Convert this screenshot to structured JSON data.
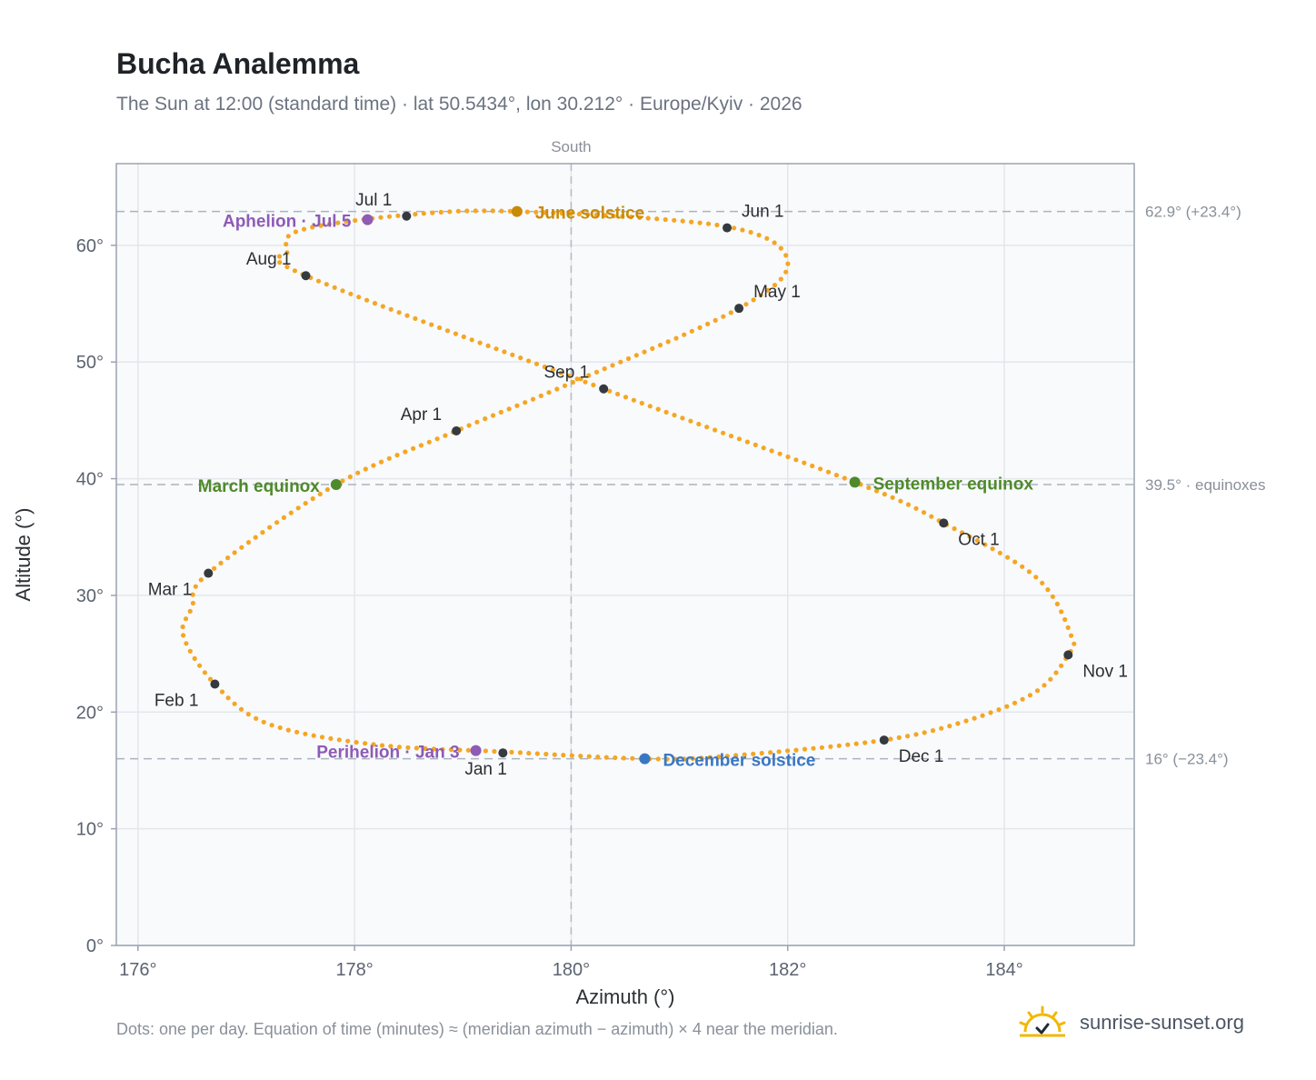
{
  "title": "Bucha Analemma",
  "subtitle": "The Sun at 12:00 (standard time) · lat 50.5434°, lon 30.212° · Europe/Kyiv · 2026",
  "footer": "Dots: one per day. Equation of time (minutes) ≈ (meridian azimuth − azimuth) × 4 near the meridian.",
  "brand": {
    "name": "sunrise-sunset.org",
    "icon": "sun-logo-icon",
    "color": "#f2b705"
  },
  "chart_data": {
    "type": "scatter",
    "xlabel": "Azimuth (°)",
    "ylabel": "Altitude (°)",
    "xlim": [
      175.8,
      185.2
    ],
    "ylim": [
      0,
      67
    ],
    "x_ticks": [
      176,
      178,
      180,
      182,
      184
    ],
    "x_tick_labels": [
      "176°",
      "178°",
      "180°",
      "182°",
      "184°"
    ],
    "y_ticks": [
      0,
      10,
      20,
      30,
      40,
      50,
      60
    ],
    "y_tick_labels": [
      "0°",
      "10°",
      "20°",
      "30°",
      "40°",
      "50°",
      "60°"
    ],
    "grid": true,
    "meridian": {
      "x": 180,
      "label": "South"
    },
    "reference_lines": [
      {
        "y": 62.9,
        "label": "62.9° (+23.4°)"
      },
      {
        "y": 39.5,
        "label": "39.5° · equinoxes"
      },
      {
        "y": 16.0,
        "label": "16° (−23.4°)"
      }
    ],
    "series": [
      {
        "path_keypoints": [
          [
            179.37,
            16.6
          ],
          [
            178.2,
            17.2
          ],
          [
            177.2,
            19.0
          ],
          [
            176.71,
            22.4
          ],
          [
            176.42,
            26.5
          ],
          [
            176.5,
            29.0
          ],
          [
            176.65,
            31.9
          ],
          [
            177.83,
            39.5
          ],
          [
            178.94,
            44.1
          ],
          [
            180.0,
            48.2
          ],
          [
            181.55,
            54.6
          ],
          [
            182.0,
            58.6
          ],
          [
            181.44,
            61.6
          ],
          [
            179.5,
            62.9
          ],
          [
            178.48,
            62.6
          ],
          [
            177.5,
            61.3
          ],
          [
            177.38,
            59.5
          ],
          [
            177.55,
            57.4
          ],
          [
            180.3,
            47.7
          ],
          [
            182.62,
            39.7
          ],
          [
            183.44,
            36.2
          ],
          [
            184.3,
            31.5
          ],
          [
            184.62,
            26.5
          ],
          [
            184.59,
            24.9
          ],
          [
            184.3,
            21.8
          ],
          [
            183.7,
            19.4
          ],
          [
            182.89,
            17.6
          ],
          [
            181.4,
            16.2
          ],
          [
            180.68,
            16.0
          ],
          [
            179.37,
            16.6
          ]
        ],
        "days": 365,
        "color": "#f5a623"
      }
    ],
    "month_markers": [
      {
        "label": "Jan 1",
        "x": 179.37,
        "y": 16.5,
        "anchor": "below"
      },
      {
        "label": "Feb 1",
        "x": 176.71,
        "y": 22.4,
        "anchor": "lower-left"
      },
      {
        "label": "Mar 1",
        "x": 176.65,
        "y": 31.9,
        "anchor": "lower-left"
      },
      {
        "label": "Apr 1",
        "x": 178.94,
        "y": 44.1,
        "anchor": "upper-left"
      },
      {
        "label": "May 1",
        "x": 181.55,
        "y": 54.6,
        "anchor": "upper-right"
      },
      {
        "label": "Jun 1",
        "x": 181.44,
        "y": 61.5,
        "anchor": "upper-right"
      },
      {
        "label": "Jul 1",
        "x": 178.48,
        "y": 62.5,
        "anchor": "upper-left"
      },
      {
        "label": "Aug 1",
        "x": 177.55,
        "y": 57.4,
        "anchor": "upper-left"
      },
      {
        "label": "Sep 1",
        "x": 180.3,
        "y": 47.7,
        "anchor": "upper-left"
      },
      {
        "label": "Oct 1",
        "x": 183.44,
        "y": 36.2,
        "anchor": "lower-right"
      },
      {
        "label": "Nov 1",
        "x": 184.59,
        "y": 24.9,
        "anchor": "lower-right"
      },
      {
        "label": "Dec 1",
        "x": 182.89,
        "y": 17.6,
        "anchor": "lower-right"
      }
    ],
    "events": [
      {
        "label": "June solstice",
        "x": 179.5,
        "y": 62.9,
        "color": "#c98a06",
        "anchor": "right"
      },
      {
        "label": "Aphelion · Jul 5",
        "x": 178.12,
        "y": 62.2,
        "color": "#8e5bb5",
        "anchor": "left"
      },
      {
        "label": "March equinox",
        "x": 177.83,
        "y": 39.5,
        "color": "#4f8a2a",
        "anchor": "left"
      },
      {
        "label": "September equinox",
        "x": 182.62,
        "y": 39.7,
        "color": "#4f8a2a",
        "anchor": "right"
      },
      {
        "label": "Perihelion · Jan 3",
        "x": 179.12,
        "y": 16.7,
        "color": "#8e5bb5",
        "anchor": "left"
      },
      {
        "label": "December solstice",
        "x": 180.68,
        "y": 16.0,
        "color": "#3a77c2",
        "anchor": "right"
      }
    ]
  }
}
